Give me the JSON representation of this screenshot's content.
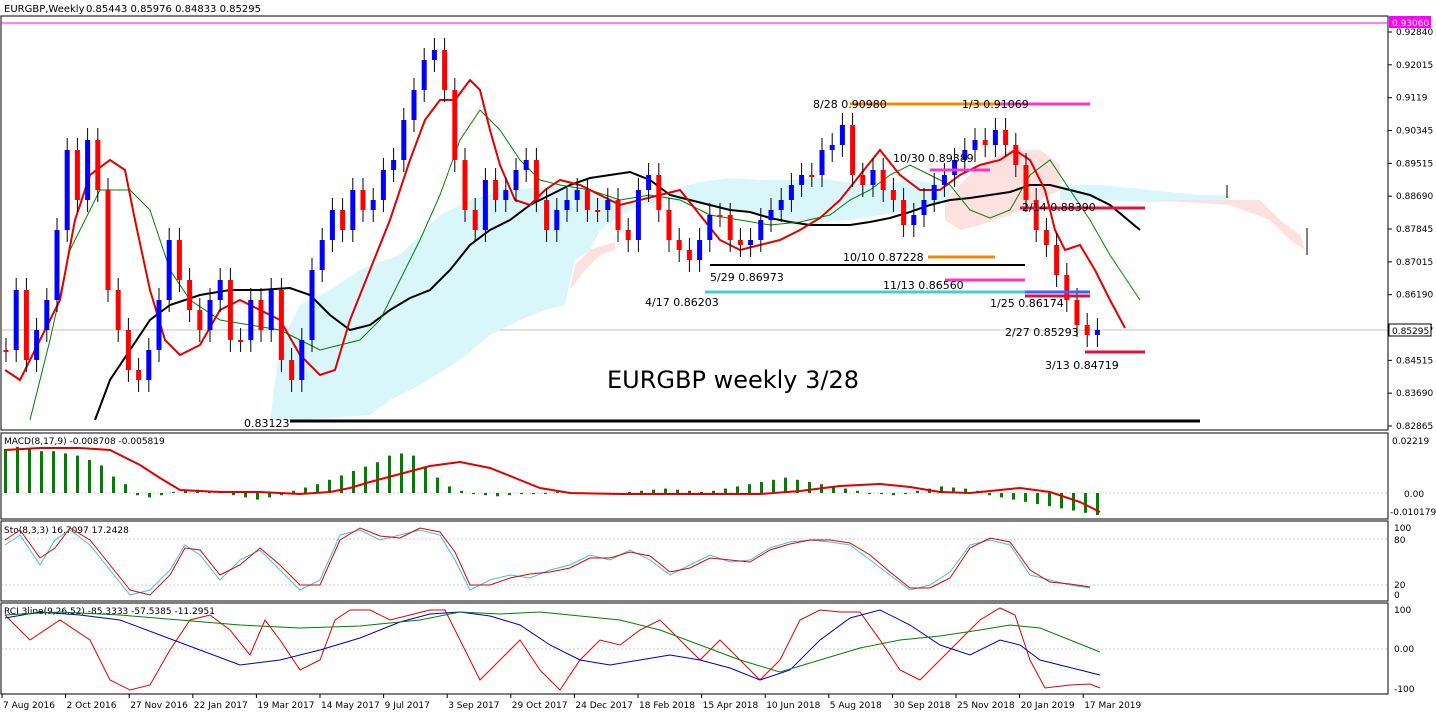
{
  "header": {
    "symbol_timeframe": "EURGBP,Weekly",
    "ohlc": "0.85443 0.85976 0.84833 0.85295"
  },
  "main_panel": {
    "price_axis_labels": [
      "0.92840",
      "0.92015",
      "0.91190",
      "0.90345",
      "0.89515",
      "0.88690",
      "0.87845",
      "0.87015",
      "0.86190",
      "0.85365",
      "0.84515",
      "0.83690",
      "0.82865"
    ],
    "price_axis_display": [
      "0.92840",
      "0.92015",
      "0.9119",
      "0.90345",
      "0.89515",
      "0.88690",
      "0.87845",
      "0.87015",
      "0.86190",
      "0.85365",
      "0.84515",
      "0.83690",
      "0.82865"
    ],
    "top_level_badge": "0.93060",
    "current_price_badge": "0.85295",
    "title_annotation": "EURGBP weekly 3/28",
    "level_labels": [
      {
        "id": "aug28",
        "text": "8/28 0.90980"
      },
      {
        "id": "jan3",
        "text": "1/3 0.91069"
      },
      {
        "id": "oct30",
        "text": "10/30 0.89389"
      },
      {
        "id": "feb14",
        "text": "2/14 0.88390"
      },
      {
        "id": "oct10",
        "text": "10/10 0.87228"
      },
      {
        "id": "may29",
        "text": "5/29 0.86973"
      },
      {
        "id": "nov13",
        "text": "11/13 0.86560"
      },
      {
        "id": "apr17",
        "text": "4/17 0.86203"
      },
      {
        "id": "jan25",
        "text": "1/25 0.86174"
      },
      {
        "id": "feb27",
        "text": "2/27 0.85293"
      },
      {
        "id": "mar13",
        "text": "3/13 0.84719"
      },
      {
        "id": "low",
        "text": "0.83123"
      }
    ],
    "colors": {
      "up_candle": "#0000ff",
      "down_candle": "#ff0000",
      "cloud_bull": "#d9f6fb",
      "cloud_bear": "#fde0e0",
      "ma_fast": "#e00000",
      "ma_mid": "#008000",
      "ma_slow": "#000000",
      "orange_level": "#f08c00",
      "magenta_level": "#ff33cc",
      "cyan_level": "#40d0d0",
      "crimson_level": "#dc143c",
      "blue_level": "#4060ff"
    }
  },
  "macd_panel": {
    "label": "MACD(8,17,9) -0.008708 -0.005819",
    "axis_labels": [
      "0.02219",
      "0.00",
      "-0.010179"
    ],
    "colors": {
      "histogram": "#008000",
      "signal": "#e00000"
    }
  },
  "stoch_panel": {
    "label": "Sto(8,3,3) 16.7097 17.2428",
    "axis_labels": [
      "100",
      "80",
      "20",
      "0"
    ]
  },
  "rci_panel": {
    "label": "RCI 3line(9,26,52) -85.3333 -57.5385 -11.2951",
    "axis_labels": [
      "100",
      "0.00",
      "-100"
    ]
  },
  "time_axis": {
    "labels": [
      "7 Aug 2016",
      "2 Oct 2016",
      "27 Nov 2016",
      "22 Jan 2017",
      "19 Mar 2017",
      "14 May 2017",
      "9 Jul 2017",
      "3 Sep 2017",
      "29 Oct 2017",
      "24 Dec 2017",
      "18 Feb 2018",
      "15 Apr 2018",
      "10 Jun 2018",
      "5 Aug 2018",
      "30 Sep 2018",
      "25 Nov 2018",
      "20 Jan 2019",
      "17 Mar 2019"
    ]
  }
}
